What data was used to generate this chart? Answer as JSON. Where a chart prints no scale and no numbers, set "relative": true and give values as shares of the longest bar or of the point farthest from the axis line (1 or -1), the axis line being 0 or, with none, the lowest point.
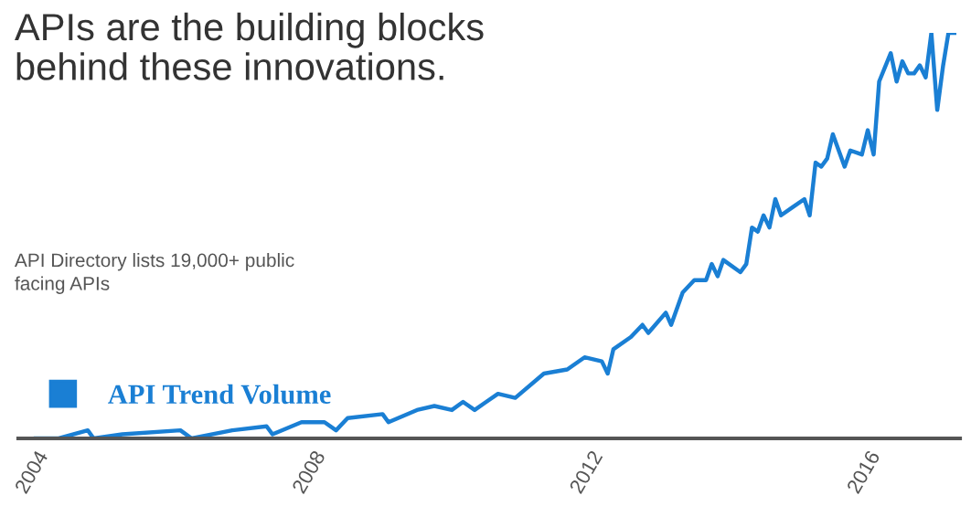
{
  "chart_data": {
    "type": "line",
    "title": "APIs are the building blocks\nbehind these innovations.",
    "annotations": [
      "API Directory lists 19,000+ public\nfacing APIs"
    ],
    "relative": true,
    "x": [
      "2004-01",
      "2004-05",
      "2004-10",
      "2004-11",
      "2005-04",
      "2006-02",
      "2006-04",
      "2006-11",
      "2007-05",
      "2007-06",
      "2007-11",
      "2008-03",
      "2008-05",
      "2008-07",
      "2009-01",
      "2009-02",
      "2009-07",
      "2009-10",
      "2010-01",
      "2010-03",
      "2010-05",
      "2010-07",
      "2010-09",
      "2010-12",
      "2011-05",
      "2011-09",
      "2011-12",
      "2012-03",
      "2012-04",
      "2012-05",
      "2012-08",
      "2012-10",
      "2012-11",
      "2013-02",
      "2013-03",
      "2013-05",
      "2013-07",
      "2013-09",
      "2013-10",
      "2013-11",
      "2013-12",
      "2014-03",
      "2014-04",
      "2014-05",
      "2014-06",
      "2014-07",
      "2014-08",
      "2014-09",
      "2014-10",
      "2014-12",
      "2015-02",
      "2015-03",
      "2015-04",
      "2015-05",
      "2015-06",
      "2015-07",
      "2015-09",
      "2015-10",
      "2015-12",
      "2016-01",
      "2016-02",
      "2016-03",
      "2016-05",
      "2016-06",
      "2016-07",
      "2016-08",
      "2016-09",
      "2016-10",
      "2016-11",
      "2016-12",
      "2017-01",
      "2017-02",
      "2017-03",
      "2017-04"
    ],
    "series": [
      {
        "name": "API Trend Volume",
        "color": "#1a7fd4",
        "values": [
          0.0,
          0.0,
          0.02,
          0.0,
          0.01,
          0.02,
          0.0,
          0.02,
          0.03,
          0.01,
          0.04,
          0.04,
          0.02,
          0.05,
          0.06,
          0.04,
          0.07,
          0.08,
          0.07,
          0.09,
          0.07,
          0.09,
          0.11,
          0.1,
          0.16,
          0.17,
          0.2,
          0.19,
          0.16,
          0.22,
          0.25,
          0.28,
          0.26,
          0.31,
          0.28,
          0.36,
          0.39,
          0.39,
          0.43,
          0.4,
          0.44,
          0.41,
          0.43,
          0.52,
          0.51,
          0.55,
          0.52,
          0.59,
          0.55,
          0.57,
          0.59,
          0.55,
          0.68,
          0.67,
          0.69,
          0.75,
          0.67,
          0.71,
          0.7,
          0.76,
          0.7,
          0.88,
          0.95,
          0.88,
          0.93,
          0.9,
          0.9,
          0.92,
          0.89,
          1.0,
          0.81,
          0.92,
          1.0,
          1.0
        ]
      }
    ],
    "xlim": [
      "2003-10",
      "2017-05"
    ],
    "xticks": [
      "2004",
      "2008",
      "2012",
      "2016"
    ],
    "legend": "bottom left",
    "grid": false
  }
}
